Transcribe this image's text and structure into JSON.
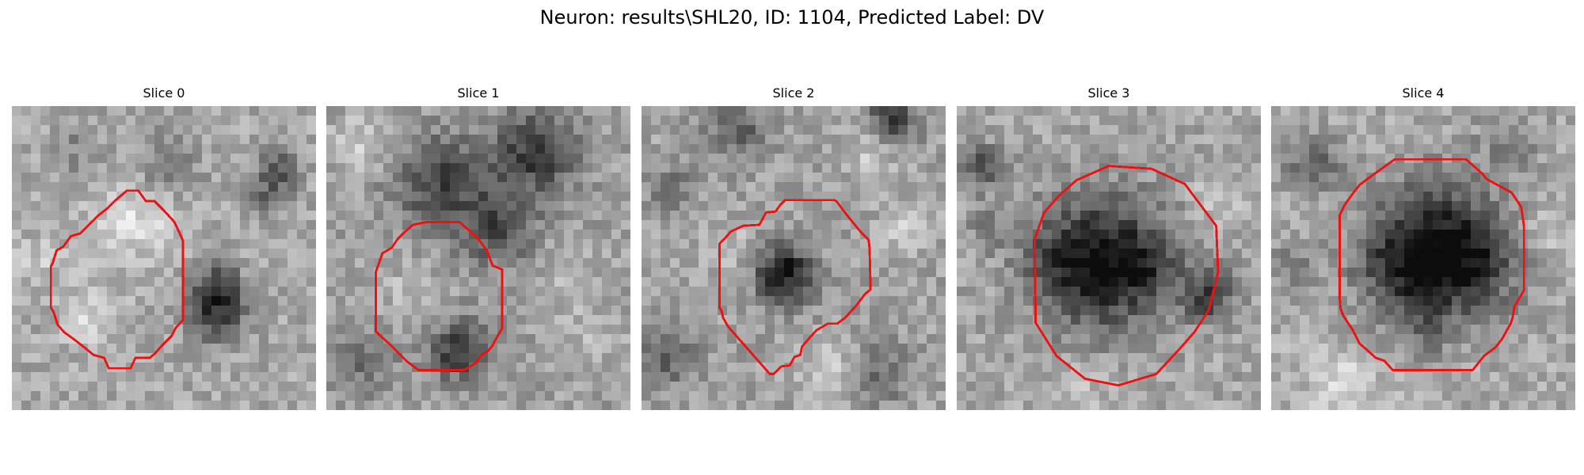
{
  "figure": {
    "title": "Neuron: results\\SHL20, ID: 1104, Predicted Label: DV"
  },
  "panels": [
    {
      "title": "Slice 0"
    },
    {
      "title": "Slice 1"
    },
    {
      "title": "Slice 2"
    },
    {
      "title": "Slice 3"
    },
    {
      "title": "Slice 4"
    }
  ],
  "colors": {
    "contour": "#ee1111",
    "background": "#ffffff"
  }
}
